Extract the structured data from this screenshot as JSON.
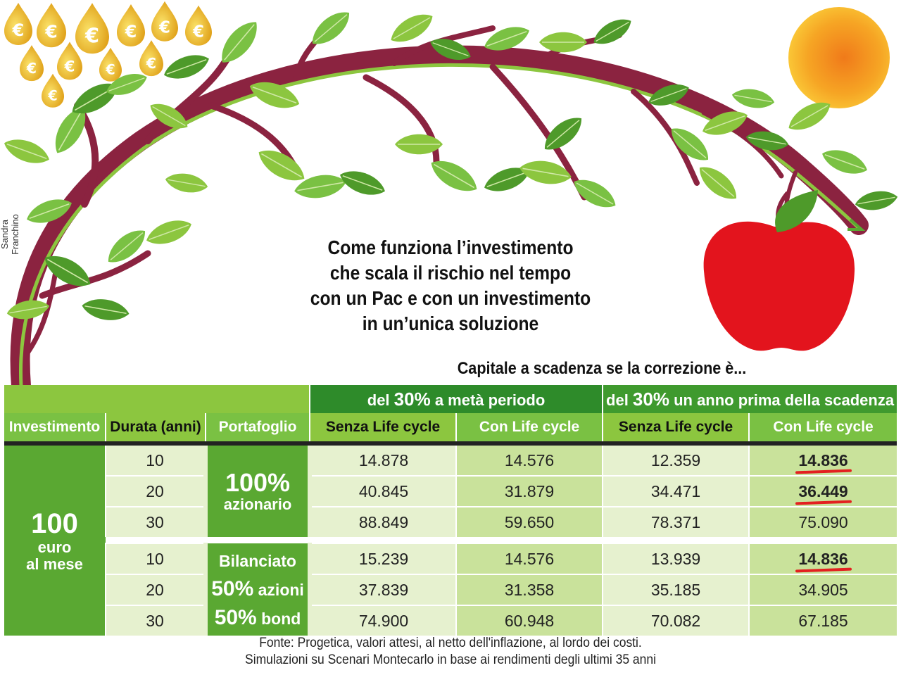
{
  "credit": "Sandra Franchino",
  "title_lines": [
    "Come funziona l’investimento",
    "che scala il rischio nel tempo",
    "con un Pac e con un investimento",
    "in un’unica soluzione"
  ],
  "subtitle": "Capitale a scadenza se la correzione è...",
  "coin_symbol": "€",
  "colors": {
    "dark_green": "#2e8b2a",
    "mid_green": "#5aa832",
    "light_green": "#8cc63f",
    "cell_pale": "#e6f1cf",
    "cell_mid": "#c9e29b",
    "branch": "#8b2340",
    "apple": "#e3141d"
  },
  "table": {
    "group1": {
      "pre": "del ",
      "big": "30%",
      "post": " a metà periodo"
    },
    "group2": {
      "pre": "del ",
      "big": "30%",
      "post": " un anno prima della scadenza"
    },
    "headers": [
      "Investimento",
      "Durata (anni)",
      "Portafoglio",
      "Senza Life cycle",
      "Con Life cycle",
      "Senza Life cycle",
      "Con Life cycle"
    ],
    "investment": {
      "amount": "100",
      "line1": "euro",
      "line2": "al mese"
    },
    "portfolio1": {
      "big": "100%",
      "sub": "azionario"
    },
    "portfolio2": {
      "l1": "Bilanciato",
      "l2_big": "50%",
      "l2": " azioni",
      "l3_big": "50%",
      "l3": " bond"
    },
    "rows": [
      {
        "years": "10",
        "v1": "14.878",
        "v2": "14.576",
        "v3": "12.359",
        "v4": "14.836"
      },
      {
        "years": "20",
        "v1": "40.845",
        "v2": "31.879",
        "v3": "34.471",
        "v4": "36.449"
      },
      {
        "years": "30",
        "v1": "88.849",
        "v2": "59.650",
        "v3": "78.371",
        "v4": "75.090"
      },
      {
        "years": "10",
        "v1": "15.239",
        "v2": "14.576",
        "v3": "13.939",
        "v4": "14.836"
      },
      {
        "years": "20",
        "v1": "37.839",
        "v2": "31.358",
        "v3": "35.185",
        "v4": "34.905"
      },
      {
        "years": "30",
        "v1": "74.900",
        "v2": "60.948",
        "v3": "70.082",
        "v4": "67.185"
      }
    ]
  },
  "source_lines": [
    "Fonte: Progetica, valori attesi, al netto dell'inflazione, al lordo dei costi.",
    "Simulazioni su Scenari Montecarlo in base ai rendimenti degli ultimi 35 anni"
  ]
}
